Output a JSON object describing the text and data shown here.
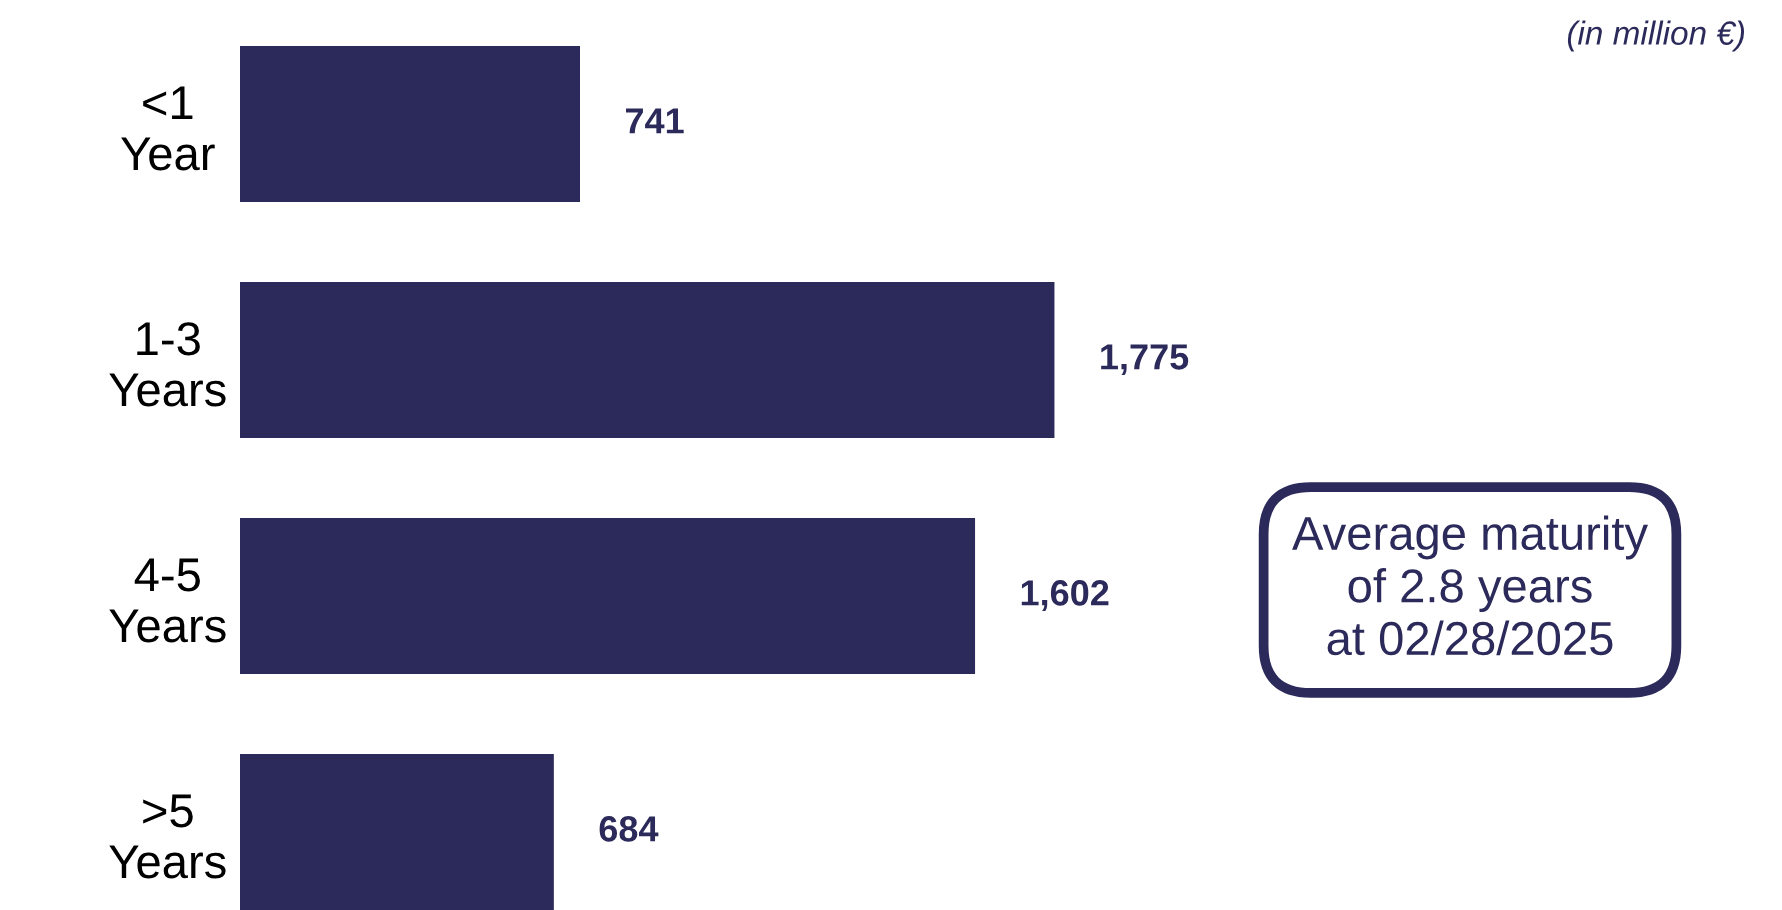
{
  "chart_data": {
    "type": "bar",
    "orientation": "horizontal",
    "categories": [
      "<1\nYear",
      "1-3\nYears",
      "4-5\nYears",
      ">5\nYears"
    ],
    "values": [
      741,
      1775,
      1602,
      684
    ],
    "color": "#2b2a5a",
    "value_labels": [
      "741",
      "1,775",
      "1,602",
      "684"
    ],
    "grid": false,
    "legend": false,
    "annotations": [
      "(in million €)",
      "Average maturity\nof 2.8 years\nat 02/28/2025"
    ]
  }
}
